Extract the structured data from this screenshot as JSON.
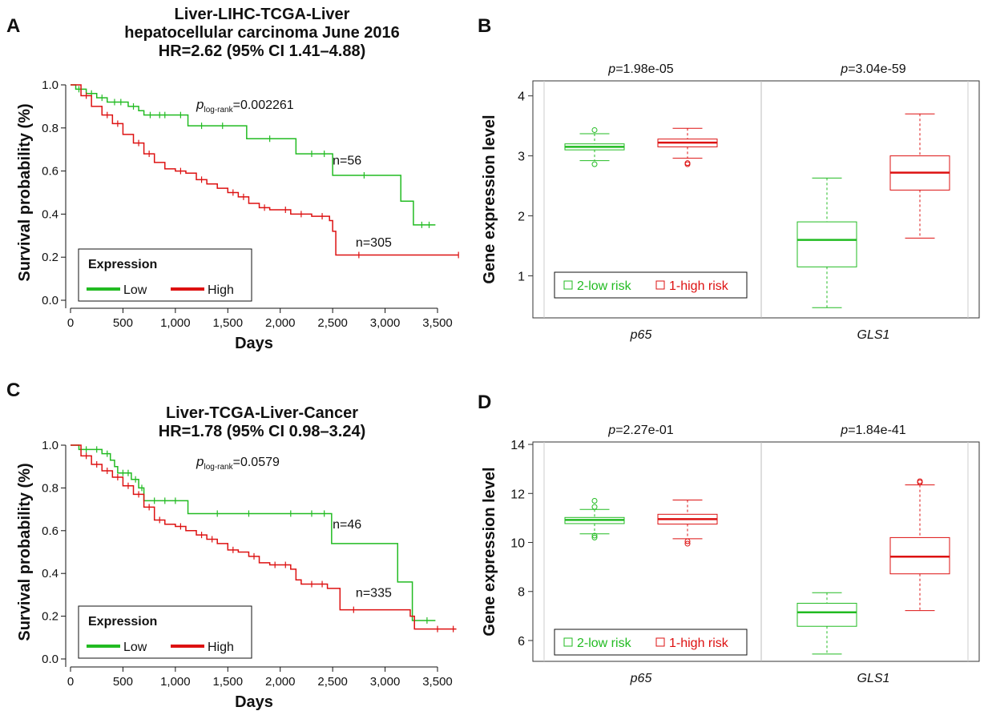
{
  "chart_data": [
    {
      "panel": "A",
      "type": "line",
      "subtype": "kaplan-meier",
      "title_lines": [
        "Liver-LIHC-TCGA-Liver",
        "hepatocellular carcinoma June 2016",
        "HR=2.62 (95% CI 1.41–4.88)"
      ],
      "xlabel": "Days",
      "ylabel": "Survival probability (%)",
      "xlim": [
        0,
        3800
      ],
      "ylim": [
        0,
        1.0
      ],
      "xticks": [
        0,
        500,
        1000,
        1500,
        2000,
        2500,
        3000,
        3500
      ],
      "xtick_labels": [
        "0",
        "500",
        "1,000",
        "1,500",
        "2,000",
        "2,500",
        "3,000",
        "3,500"
      ],
      "yticks": [
        0,
        0.2,
        0.4,
        0.6,
        0.8,
        1.0
      ],
      "ytick_labels": [
        "0.0",
        "0.2",
        "0.4",
        "0.6",
        "0.8",
        "1.0"
      ],
      "pvalue": {
        "p": "p",
        "sub": "log-rank",
        "value": "=0.002261"
      },
      "legend": {
        "title": "Expression",
        "entries": [
          "Low",
          "High"
        ]
      },
      "series": [
        {
          "name": "Low",
          "color": "#22bb22",
          "n_label": "n=56",
          "label_at": [
            2500,
            0.63
          ],
          "steps": [
            [
              0,
              1.0
            ],
            [
              50,
              0.98
            ],
            [
              150,
              0.96
            ],
            [
              250,
              0.94
            ],
            [
              350,
              0.92
            ],
            [
              550,
              0.9
            ],
            [
              650,
              0.88
            ],
            [
              700,
              0.86
            ],
            [
              1120,
              0.81
            ],
            [
              1680,
              0.75
            ],
            [
              2150,
              0.68
            ],
            [
              2500,
              0.58
            ],
            [
              3150,
              0.46
            ],
            [
              3270,
              0.35
            ],
            [
              3480,
              0.35
            ]
          ],
          "censor": [
            80,
            200,
            300,
            420,
            480,
            600,
            760,
            850,
            900,
            1050,
            1250,
            1450,
            1900,
            2300,
            2420,
            2800,
            3350,
            3420
          ]
        },
        {
          "name": "High",
          "color": "#dd1111",
          "n_label": "n=305",
          "label_at": [
            2720,
            0.25
          ],
          "steps": [
            [
              0,
              1.0
            ],
            [
              100,
              0.95
            ],
            [
              200,
              0.9
            ],
            [
              300,
              0.86
            ],
            [
              400,
              0.82
            ],
            [
              500,
              0.77
            ],
            [
              600,
              0.73
            ],
            [
              700,
              0.68
            ],
            [
              800,
              0.64
            ],
            [
              900,
              0.61
            ],
            [
              1000,
              0.6
            ],
            [
              1100,
              0.59
            ],
            [
              1200,
              0.56
            ],
            [
              1300,
              0.54
            ],
            [
              1400,
              0.52
            ],
            [
              1500,
              0.5
            ],
            [
              1600,
              0.48
            ],
            [
              1700,
              0.45
            ],
            [
              1800,
              0.43
            ],
            [
              1900,
              0.42
            ],
            [
              2000,
              0.42
            ],
            [
              2100,
              0.4
            ],
            [
              2300,
              0.39
            ],
            [
              2470,
              0.37
            ],
            [
              2500,
              0.32
            ],
            [
              2530,
              0.21
            ],
            [
              3700,
              0.21
            ]
          ],
          "censor": [
            150,
            350,
            450,
            650,
            750,
            1050,
            1250,
            1550,
            1650,
            1850,
            2050,
            2200,
            2400,
            2750,
            3700
          ]
        }
      ]
    },
    {
      "panel": "B",
      "type": "box",
      "ylabel": "Gene expression level",
      "ylim": [
        0.3,
        4.25
      ],
      "yticks": [
        1,
        2,
        3,
        4
      ],
      "ytick_labels": [
        "1",
        "2",
        "3",
        "4"
      ],
      "groups": [
        "p65",
        "GLS1"
      ],
      "pvalues": [
        {
          "p": "p",
          "value": "=1.98e-05"
        },
        {
          "p": "p",
          "value": "=3.04e-59"
        }
      ],
      "legend": [
        "2-low risk",
        "1-high risk"
      ],
      "boxes": [
        {
          "group": 0,
          "series": 0,
          "color": "#22bb22",
          "whisker_low": 2.92,
          "q1": 3.1,
          "median": 3.15,
          "q3": 3.2,
          "whisker_high": 3.37,
          "outliers": [
            2.86,
            3.43
          ]
        },
        {
          "group": 0,
          "series": 1,
          "color": "#dd1111",
          "whisker_low": 2.96,
          "q1": 3.15,
          "median": 3.22,
          "q3": 3.28,
          "whisker_high": 3.46,
          "outliers": [
            2.86,
            2.88
          ]
        },
        {
          "group": 1,
          "series": 0,
          "color": "#22bb22",
          "whisker_low": 0.47,
          "q1": 1.15,
          "median": 1.6,
          "q3": 1.9,
          "whisker_high": 2.63,
          "outliers": []
        },
        {
          "group": 1,
          "series": 1,
          "color": "#dd1111",
          "whisker_low": 1.63,
          "q1": 2.43,
          "median": 2.72,
          "q3": 3.0,
          "whisker_high": 3.7,
          "outliers": []
        }
      ]
    },
    {
      "panel": "C",
      "type": "line",
      "subtype": "kaplan-meier",
      "title_lines": [
        "Liver-TCGA-Liver-Cancer",
        "HR=1.78 (95% CI 0.98–3.24)"
      ],
      "xlabel": "Days",
      "ylabel": "Survival probability (%)",
      "xlim": [
        0,
        3800
      ],
      "ylim": [
        0,
        1.0
      ],
      "xticks": [
        0,
        500,
        1000,
        1500,
        2000,
        2500,
        3000,
        3500
      ],
      "xtick_labels": [
        "0",
        "500",
        "1,000",
        "1,500",
        "2,000",
        "2,500",
        "3,000",
        "3,500"
      ],
      "yticks": [
        0,
        0.2,
        0.4,
        0.6,
        0.8,
        1.0
      ],
      "ytick_labels": [
        "0.0",
        "0.2",
        "0.4",
        "0.6",
        "0.8",
        "1.0"
      ],
      "pvalue": {
        "p": "p",
        "sub": "log-rank",
        "value": "=0.0579"
      },
      "legend": {
        "title": "Expression",
        "entries": [
          "Low",
          "High"
        ]
      },
      "series": [
        {
          "name": "Low",
          "color": "#22bb22",
          "n_label": "n=46",
          "label_at": [
            2500,
            0.61
          ],
          "steps": [
            [
              0,
              1.0
            ],
            [
              80,
              0.98
            ],
            [
              300,
              0.96
            ],
            [
              380,
              0.93
            ],
            [
              420,
              0.9
            ],
            [
              450,
              0.87
            ],
            [
              580,
              0.84
            ],
            [
              650,
              0.8
            ],
            [
              700,
              0.74
            ],
            [
              1120,
              0.68
            ],
            [
              2490,
              0.54
            ],
            [
              3120,
              0.36
            ],
            [
              3260,
              0.18
            ],
            [
              3480,
              0.18
            ]
          ],
          "censor": [
            150,
            250,
            350,
            500,
            550,
            620,
            680,
            800,
            900,
            1000,
            1400,
            1700,
            2100,
            2300,
            2420,
            3400
          ]
        },
        {
          "name": "High",
          "color": "#dd1111",
          "n_label": "n=335",
          "label_at": [
            2720,
            0.29
          ],
          "steps": [
            [
              0,
              1.0
            ],
            [
              100,
              0.95
            ],
            [
              200,
              0.91
            ],
            [
              300,
              0.88
            ],
            [
              400,
              0.85
            ],
            [
              500,
              0.81
            ],
            [
              600,
              0.77
            ],
            [
              700,
              0.71
            ],
            [
              800,
              0.65
            ],
            [
              900,
              0.63
            ],
            [
              1000,
              0.62
            ],
            [
              1100,
              0.6
            ],
            [
              1200,
              0.58
            ],
            [
              1300,
              0.56
            ],
            [
              1400,
              0.54
            ],
            [
              1500,
              0.51
            ],
            [
              1600,
              0.5
            ],
            [
              1700,
              0.48
            ],
            [
              1800,
              0.45
            ],
            [
              1900,
              0.44
            ],
            [
              2000,
              0.44
            ],
            [
              2100,
              0.42
            ],
            [
              2150,
              0.37
            ],
            [
              2200,
              0.35
            ],
            [
              2450,
              0.33
            ],
            [
              2570,
              0.23
            ],
            [
              3240,
              0.2
            ],
            [
              3280,
              0.14
            ],
            [
              3680,
              0.14
            ]
          ],
          "censor": [
            150,
            250,
            350,
            450,
            550,
            650,
            750,
            850,
            1050,
            1250,
            1350,
            1550,
            1750,
            1950,
            2050,
            2300,
            2400,
            2700,
            3500,
            3650
          ]
        }
      ]
    },
    {
      "panel": "D",
      "type": "box",
      "ylabel": "Gene expression level",
      "ylim": [
        5.15,
        14.1
      ],
      "yticks": [
        6,
        8,
        10,
        12,
        14
      ],
      "ytick_labels": [
        "6",
        "8",
        "10",
        "12",
        "14"
      ],
      "groups": [
        "p65",
        "GLS1"
      ],
      "pvalues": [
        {
          "p": "p",
          "value": "=2.27e-01"
        },
        {
          "p": "p",
          "value": "=1.84e-41"
        }
      ],
      "legend": [
        "2-low risk",
        "1-high risk"
      ],
      "boxes": [
        {
          "group": 0,
          "series": 0,
          "color": "#22bb22",
          "whisker_low": 10.35,
          "q1": 10.77,
          "median": 10.92,
          "q3": 11.02,
          "whisker_high": 11.35,
          "outliers": [
            10.2,
            10.28,
            11.45,
            11.7
          ]
        },
        {
          "group": 0,
          "series": 1,
          "color": "#dd1111",
          "whisker_low": 10.15,
          "q1": 10.75,
          "median": 10.95,
          "q3": 11.15,
          "whisker_high": 11.73,
          "outliers": [
            9.95,
            10.05
          ]
        },
        {
          "group": 1,
          "series": 0,
          "color": "#22bb22",
          "whisker_low": 5.45,
          "q1": 6.58,
          "median": 7.15,
          "q3": 7.52,
          "whisker_high": 7.95,
          "outliers": []
        },
        {
          "group": 1,
          "series": 1,
          "color": "#dd1111",
          "whisker_low": 7.22,
          "q1": 8.72,
          "median": 9.42,
          "q3": 10.2,
          "whisker_high": 12.35,
          "outliers": [
            12.45,
            12.5
          ]
        }
      ]
    }
  ]
}
